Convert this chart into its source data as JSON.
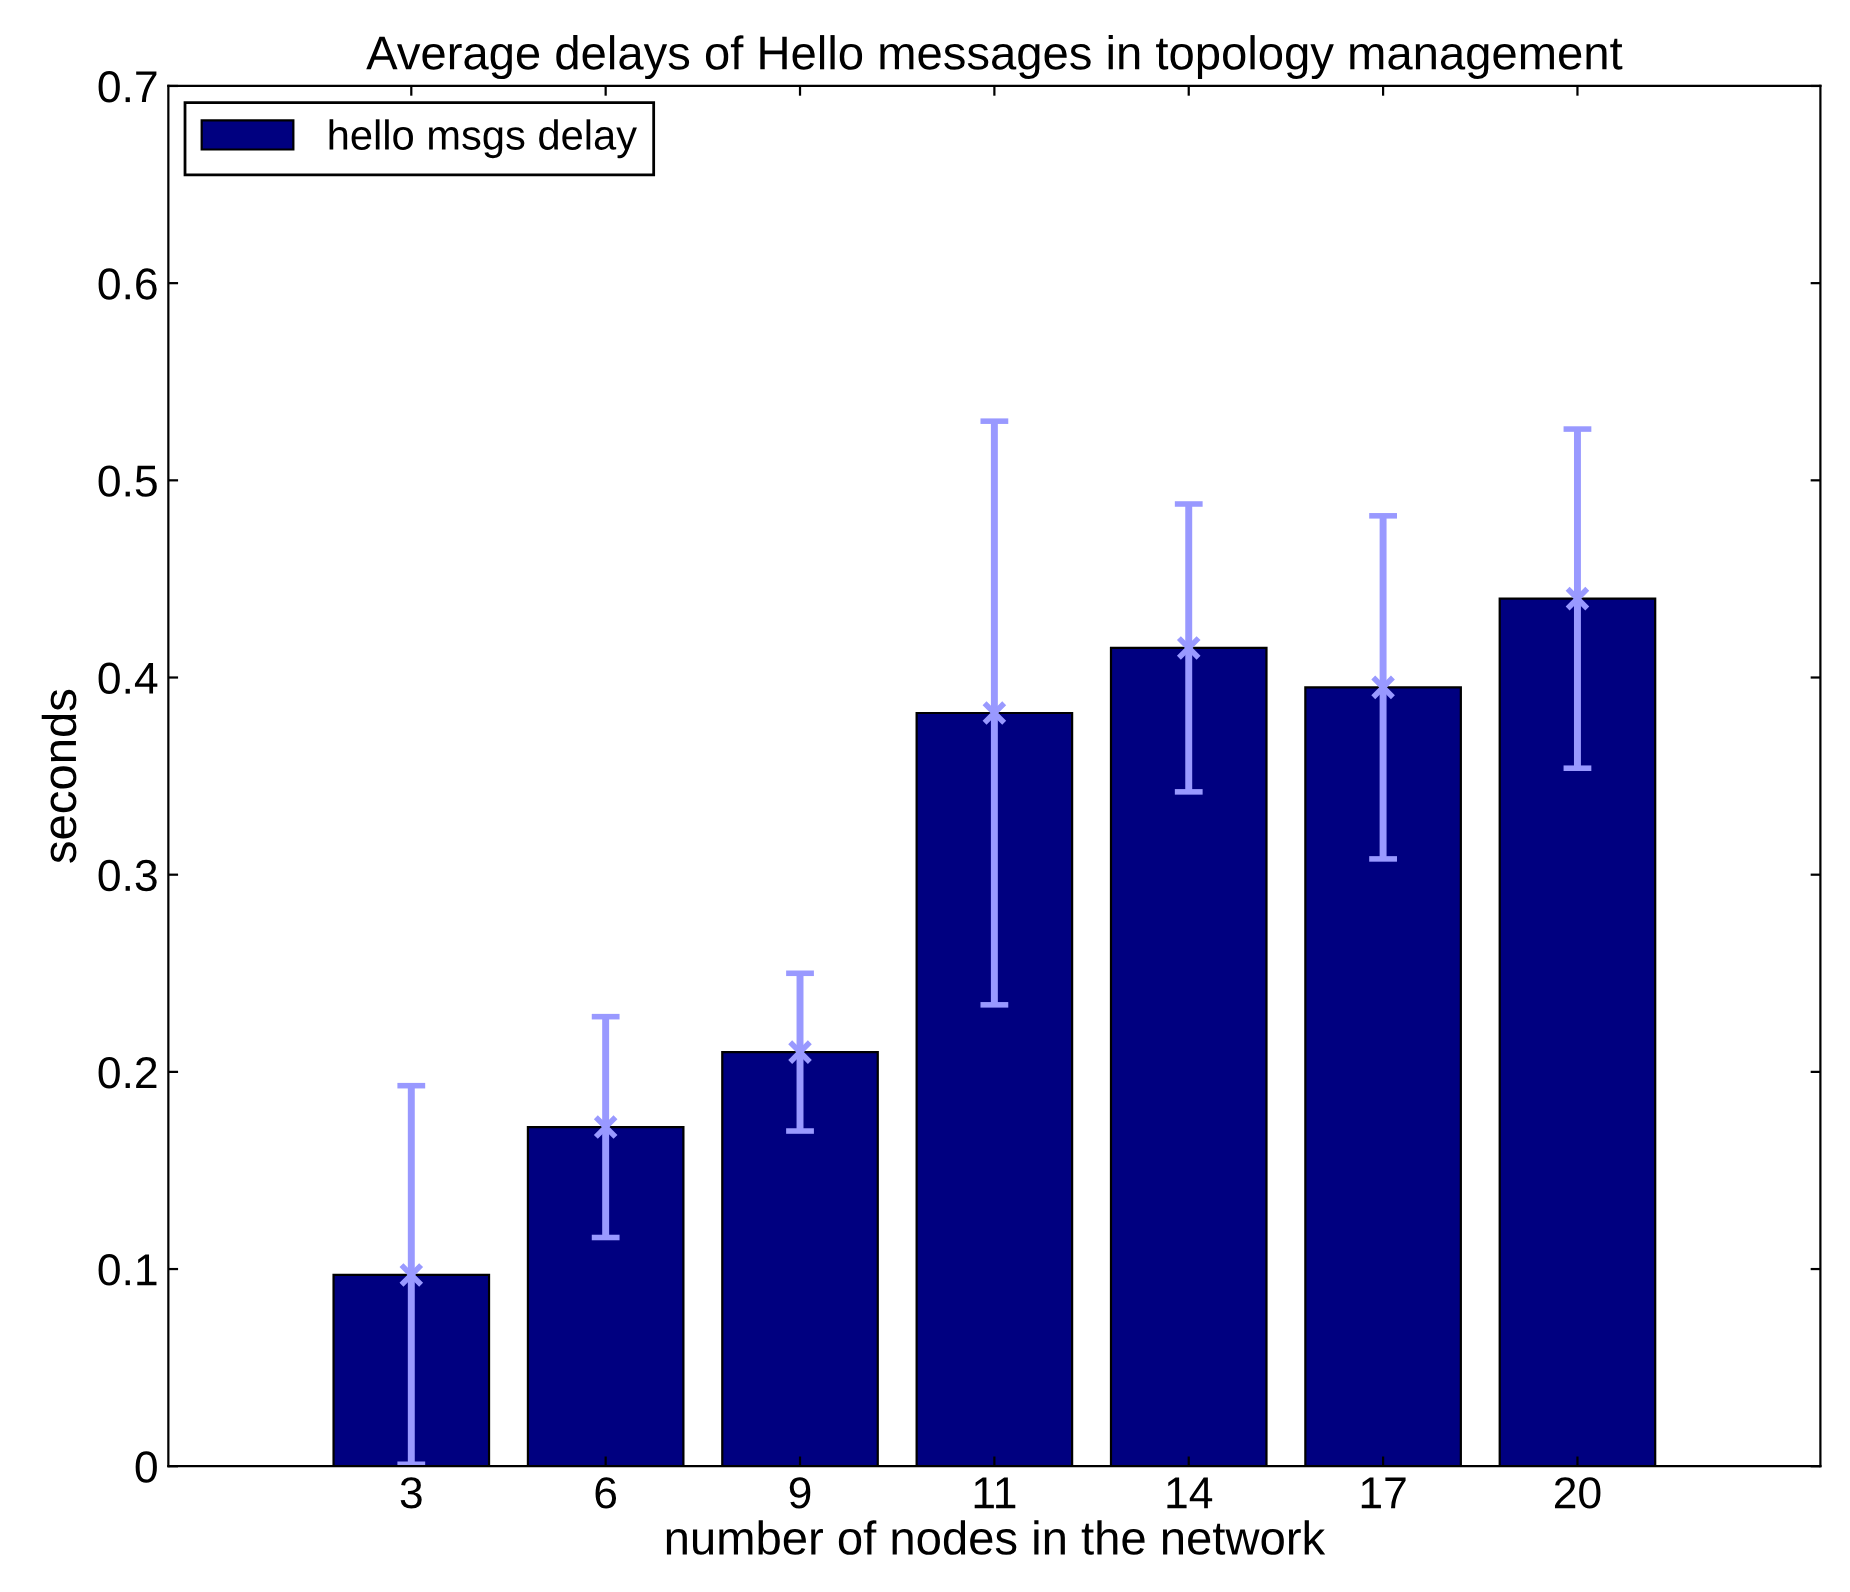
{
  "chart_data": {
    "type": "bar",
    "title": "Average delays of Hello messages in topology management",
    "xlabel": "number of nodes in the network",
    "ylabel": "seconds",
    "categories": [
      "3",
      "6",
      "9",
      "11",
      "14",
      "17",
      "20"
    ],
    "series": [
      {
        "name": "hello msgs delay",
        "color": "#000080",
        "values": [
          0.097,
          0.172,
          0.21,
          0.382,
          0.415,
          0.395,
          0.44
        ],
        "errors": [
          0.096,
          0.056,
          0.04,
          0.148,
          0.073,
          0.087,
          0.086
        ]
      },
      {
        "type": "scatter",
        "color": "#9999ff",
        "marker": "cross",
        "x": [
          "3",
          "6",
          "9",
          "11",
          "14",
          "17",
          "20"
        ],
        "values": [
          0.097,
          0.172,
          0.21,
          0.382,
          0.415,
          0.395,
          0.44
        ]
      }
    ],
    "ylim": [
      0,
      0.7
    ],
    "yticks": [
      0,
      0.1,
      0.2,
      0.3,
      0.4,
      0.5,
      0.6,
      0.7
    ],
    "grid": false,
    "legend": "top left"
  }
}
